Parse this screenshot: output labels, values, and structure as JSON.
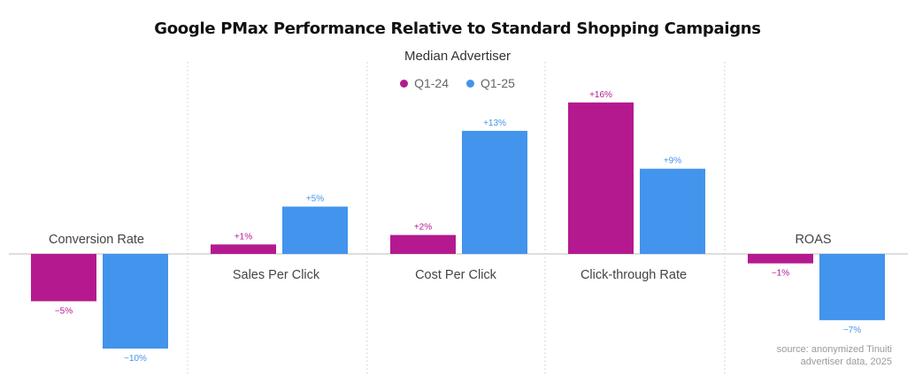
{
  "chart_data": {
    "type": "bar",
    "title": "Google PMax Performance Relative to Standard Shopping Campaigns",
    "subtitle": "Median Advertiser",
    "categories": [
      "Conversion Rate",
      "Sales Per Click",
      "Cost Per Click",
      "Click-through Rate",
      "ROAS"
    ],
    "series": [
      {
        "name": "Q1-24",
        "color": "#b5198f",
        "values": [
          -5,
          1,
          2,
          16,
          -1
        ],
        "labels": [
          "−5%",
          "+1%",
          "+2%",
          "+16%",
          "−1%"
        ]
      },
      {
        "name": "Q1-25",
        "color": "#4394ec",
        "values": [
          -10,
          5,
          13,
          9,
          -7
        ],
        "labels": [
          "−10%",
          "+5%",
          "+13%",
          "+9%",
          "−7%"
        ]
      }
    ],
    "ylim": [
      -12,
      18
    ],
    "xlabel": "",
    "ylabel": "",
    "legend": "top-center",
    "source": [
      "source: anonymized Tinuiti",
      "advertiser data, 2025"
    ]
  }
}
